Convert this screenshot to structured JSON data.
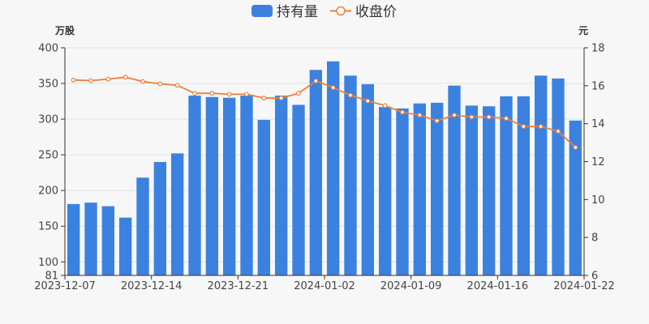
{
  "chart_data": {
    "type": "bar+line",
    "legend": {
      "position": "top-center",
      "items": [
        {
          "label": "持有量",
          "color": "#3b82e0",
          "kind": "bar"
        },
        {
          "label": "收盘价",
          "color": "#ee7f3b",
          "kind": "line"
        }
      ]
    },
    "y_left": {
      "unit": "万股",
      "ticks": [
        81,
        100,
        150,
        200,
        250,
        300,
        350,
        400
      ],
      "range": [
        81,
        400
      ]
    },
    "y_right": {
      "unit": "元",
      "ticks": [
        6,
        8,
        10,
        12,
        14,
        16,
        18
      ],
      "range": [
        6,
        18
      ]
    },
    "x_tick_labels": [
      "2023-12-07",
      "2023-12-14",
      "2023-12-21",
      "2024-01-02",
      "2024-01-09",
      "2024-01-16",
      "2024-01-22"
    ],
    "x_tick_label_indices": [
      0,
      5,
      10,
      15,
      20,
      25,
      30
    ],
    "grid": true,
    "series": [
      {
        "name": "持有量",
        "axis": "left",
        "type": "bar",
        "color": "#3b82e0",
        "values": [
          181,
          183,
          178,
          162,
          218,
          240,
          252,
          333,
          331,
          330,
          333,
          299,
          333,
          320,
          369,
          381,
          361,
          349,
          317,
          315,
          322,
          323,
          347,
          319,
          318,
          332,
          332,
          361,
          357,
          298
        ]
      },
      {
        "name": "收盘价",
        "axis": "right",
        "type": "line",
        "color": "#ee7f3b",
        "values": [
          16.3,
          16.27,
          16.35,
          16.45,
          16.22,
          16.1,
          16.02,
          15.6,
          15.6,
          15.55,
          15.55,
          15.35,
          15.35,
          15.6,
          16.25,
          15.9,
          15.5,
          15.2,
          14.95,
          14.6,
          14.45,
          14.15,
          14.45,
          14.35,
          14.35,
          14.28,
          13.85,
          13.85,
          13.6,
          12.75
        ]
      }
    ]
  }
}
